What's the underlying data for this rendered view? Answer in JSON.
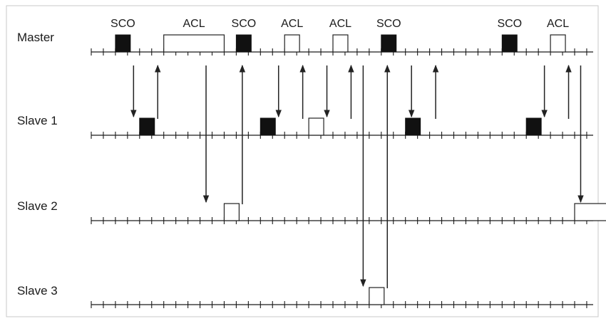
{
  "rows": [
    {
      "id": "master",
      "label": "Master"
    },
    {
      "id": "slave1",
      "label": "Slave 1"
    },
    {
      "id": "slave2",
      "label": "Slave 2"
    },
    {
      "id": "slave3",
      "label": "Slave 3"
    }
  ],
  "slot_count": 43,
  "packets": [
    {
      "row": "master",
      "slot": 2,
      "length": 1,
      "kind": "SCO",
      "label": "SCO"
    },
    {
      "row": "master",
      "slot": 6,
      "length": 5,
      "kind": "ACL",
      "label": "ACL"
    },
    {
      "row": "master",
      "slot": 12,
      "length": 1,
      "kind": "SCO",
      "label": "SCO"
    },
    {
      "row": "master",
      "slot": 16,
      "length": 1,
      "kind": "ACL",
      "label": "ACL"
    },
    {
      "row": "master",
      "slot": 20,
      "length": 1,
      "kind": "ACL",
      "label": "ACL"
    },
    {
      "row": "master",
      "slot": 24,
      "length": 1,
      "kind": "SCO",
      "label": "SCO"
    },
    {
      "row": "master",
      "slot": 34,
      "length": 1,
      "kind": "SCO",
      "label": "SCO"
    },
    {
      "row": "master",
      "slot": 38,
      "length": 1,
      "kind": "ACL",
      "label": "ACL"
    },
    {
      "row": "slave1",
      "slot": 4,
      "length": 1,
      "kind": "SCO",
      "label": ""
    },
    {
      "row": "slave1",
      "slot": 14,
      "length": 1,
      "kind": "SCO",
      "label": ""
    },
    {
      "row": "slave1",
      "slot": 18,
      "length": 1,
      "kind": "ACL",
      "label": ""
    },
    {
      "row": "slave1",
      "slot": 26,
      "length": 1,
      "kind": "SCO",
      "label": ""
    },
    {
      "row": "slave1",
      "slot": 36,
      "length": 1,
      "kind": "SCO",
      "label": ""
    },
    {
      "row": "slave2",
      "slot": 11,
      "length": 1,
      "kind": "ACL",
      "label": ""
    },
    {
      "row": "slave2",
      "slot": 40,
      "length": 5,
      "kind": "ACL",
      "label": ""
    },
    {
      "row": "slave3",
      "slot": 23,
      "length": 1,
      "kind": "ACL",
      "label": ""
    }
  ],
  "transfers": [
    {
      "from": "master",
      "to": "slave1",
      "slot": 3
    },
    {
      "from": "slave1",
      "to": "master",
      "slot": 5
    },
    {
      "from": "master",
      "to": "slave2",
      "slot": 9
    },
    {
      "from": "slave2",
      "to": "master",
      "slot": 12
    },
    {
      "from": "master",
      "to": "slave1",
      "slot": 15
    },
    {
      "from": "slave1",
      "to": "master",
      "slot": 17
    },
    {
      "from": "master",
      "to": "slave1",
      "slot": 19
    },
    {
      "from": "slave1",
      "to": "master",
      "slot": 21
    },
    {
      "from": "master",
      "to": "slave3",
      "slot": 22
    },
    {
      "from": "slave3",
      "to": "master",
      "slot": 24
    },
    {
      "from": "master",
      "to": "slave1",
      "slot": 26
    },
    {
      "from": "slave1",
      "to": "master",
      "slot": 28
    },
    {
      "from": "master",
      "to": "slave1",
      "slot": 37
    },
    {
      "from": "slave1",
      "to": "master",
      "slot": 39
    },
    {
      "from": "master",
      "to": "slave2",
      "slot": 40
    },
    {
      "from": "slave2",
      "to": "master",
      "slot": 44
    }
  ]
}
